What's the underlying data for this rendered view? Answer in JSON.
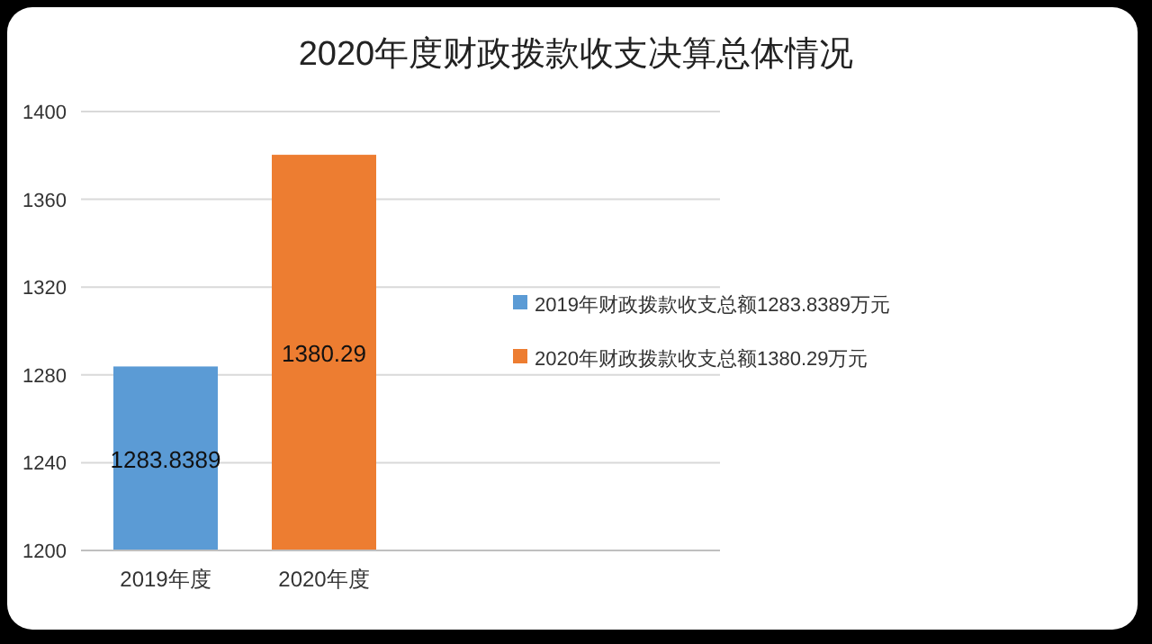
{
  "chart_data": {
    "type": "bar",
    "title": "2020年度财政拨款收支决算总体情况",
    "categories": [
      "2019年度",
      "2020年度"
    ],
    "series": [
      {
        "name": "2019年财政拨款收支总额1283.8389万元",
        "color": "#5b9bd5",
        "values": [
          1283.8389,
          null
        ]
      },
      {
        "name": "2020年财政拨款收支总额1380.29万元",
        "color": "#ed7d31",
        "values": [
          null,
          1380.29
        ]
      }
    ],
    "ylim": [
      1200,
      1400
    ],
    "yticks": [
      1200,
      1240,
      1280,
      1320,
      1360,
      1400
    ],
    "grid": "y",
    "legend": "right",
    "data_labels": true
  }
}
